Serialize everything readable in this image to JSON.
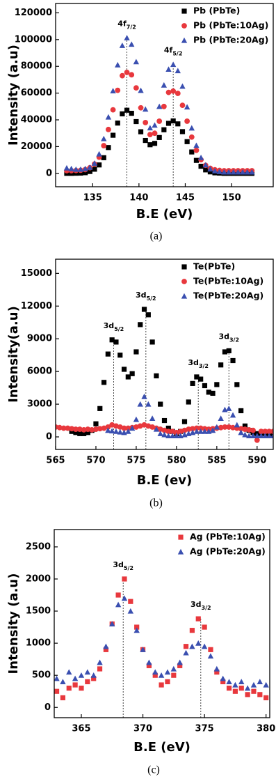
{
  "chart_data": [
    {
      "type": "scatter",
      "caption": "(a)",
      "x_label": "B.E (eV)",
      "y_label": "Intensity (a.u)",
      "xlim": [
        131,
        154.5
      ],
      "ylim": [
        -10000,
        127000
      ],
      "xticks": [
        135,
        140,
        145,
        150
      ],
      "yticks": [
        0,
        20000,
        40000,
        60000,
        80000,
        100000,
        120000
      ],
      "legend": "top-right",
      "reference_lines": [
        138.7,
        143.7
      ],
      "annotations": [
        {
          "text": "4f",
          "sub": "7/2"
        },
        {
          "text": "4f",
          "sub": "5/2"
        }
      ],
      "x": [
        132.2,
        132.7,
        133.2,
        133.7,
        134.2,
        134.7,
        135.2,
        135.7,
        136.2,
        136.7,
        137.2,
        137.7,
        138.2,
        138.7,
        139.2,
        139.7,
        140.2,
        140.7,
        141.2,
        141.7,
        142.2,
        142.7,
        143.2,
        143.7,
        144.2,
        144.7,
        145.2,
        145.7,
        146.2,
        146.7,
        147.2,
        147.7,
        148.2,
        148.7,
        149.2,
        149.7,
        150.2,
        150.7,
        151.2,
        151.7,
        152.2
      ],
      "series": [
        {
          "name": "Pb (PbTe)",
          "color": "#000000",
          "marker": "square",
          "values": [
            0,
            0,
            100,
            200,
            500,
            1400,
            3100,
            6300,
            11700,
            19300,
            28500,
            37600,
            44500,
            47200,
            44900,
            38700,
            31100,
            24600,
            21400,
            22400,
            26800,
            32600,
            37400,
            39200,
            37000,
            31200,
            23700,
            16000,
            9700,
            5300,
            2600,
            1100,
            400,
            200,
            0,
            0,
            0,
            0,
            0,
            0,
            0
          ]
        },
        {
          "name": "Pb (PbTe:10Ag)",
          "color": "#e8383d",
          "marker": "circle",
          "values": [
            2000,
            2000,
            2100,
            2300,
            2800,
            4200,
            7000,
            12100,
            20700,
            32800,
            47500,
            62100,
            73000,
            75500,
            73700,
            63900,
            49000,
            38000,
            29000,
            30000,
            39000,
            50000,
            60500,
            61500,
            59800,
            50900,
            39000,
            27100,
            17200,
            10200,
            6000,
            3800,
            2700,
            2200,
            2000,
            2000,
            2000,
            2000,
            2000,
            2000,
            2000
          ]
        },
        {
          "name": "Pb (PbTe:20Ag)",
          "color": "#3a4fb0",
          "marker": "triangle",
          "values": [
            4000,
            3500,
            3000,
            3000,
            3500,
            4500,
            7600,
            14500,
            25900,
            42100,
            61700,
            81100,
            95600,
            101300,
            96500,
            83400,
            62000,
            48000,
            34000,
            36000,
            50000,
            66000,
            77800,
            81400,
            76700,
            65100,
            49600,
            33900,
            20900,
            11800,
            6300,
            3300,
            1900,
            1300,
            1000,
            1000,
            1000,
            1000,
            1000,
            1000,
            1000
          ]
        }
      ]
    },
    {
      "type": "scatter",
      "caption": "(b)",
      "x_label": "B.E (ev)",
      "y_label": "Intensity(a.u)",
      "xlim": [
        565,
        592
      ],
      "ylim": [
        -1150,
        16300
      ],
      "xticks": [
        565,
        570,
        575,
        580,
        585,
        590
      ],
      "yticks": [
        0,
        3000,
        6000,
        9000,
        12000,
        15000
      ],
      "legend": "top-right",
      "reference_lines": [
        572.2,
        576.2,
        582.7,
        586.5
      ],
      "annotations": [
        {
          "text": "3d",
          "sub": "5/2"
        },
        {
          "text": "3d",
          "sub": "5/2"
        },
        {
          "text": "3d",
          "sub": "3/2"
        },
        {
          "text": "3d",
          "sub": "3/2"
        }
      ],
      "x": [
        565,
        565.5,
        566,
        566.5,
        567,
        567.5,
        568,
        568.5,
        569,
        569.5,
        570,
        570.5,
        571,
        571.5,
        572,
        572.5,
        573,
        573.5,
        574,
        574.5,
        575,
        575.5,
        576,
        576.5,
        577,
        577.5,
        578,
        578.5,
        579,
        579.5,
        580,
        580.5,
        581,
        581.5,
        582,
        582.5,
        583,
        583.5,
        584,
        584.5,
        585,
        585.5,
        586,
        586.5,
        587,
        587.5,
        588,
        588.5,
        589,
        589.5,
        590,
        590.5,
        591,
        591.5,
        592
      ],
      "series": [
        {
          "name": "Te(PbTe)",
          "color": "#000000",
          "marker": "square",
          "values": [
            null,
            null,
            null,
            null,
            500,
            400,
            300,
            300,
            400,
            600,
            1200,
            2600,
            5000,
            7600,
            8900,
            8700,
            7500,
            6200,
            5500,
            5800,
            7800,
            10300,
            11700,
            11200,
            8700,
            5600,
            3000,
            1500,
            800,
            500,
            300,
            500,
            1400,
            3200,
            4900,
            5500,
            5300,
            4700,
            4100,
            4000,
            4800,
            6600,
            7800,
            7900,
            7000,
            4800,
            2400,
            1000,
            600,
            400,
            300,
            300,
            300,
            200,
            200
          ]
        },
        {
          "name": "Te(PbTe:10Ag)",
          "color": "#e8383d",
          "marker": "circle",
          "values": [
            900,
            850,
            800,
            800,
            750,
            700,
            700,
            650,
            700,
            650,
            700,
            750,
            800,
            900,
            1100,
            1000,
            900,
            800,
            800,
            850,
            900,
            1000,
            1100,
            1000,
            900,
            800,
            700,
            600,
            500,
            500,
            400,
            500,
            600,
            700,
            750,
            800,
            800,
            750,
            700,
            750,
            800,
            850,
            900,
            900,
            850,
            800,
            750,
            700,
            650,
            600,
            -300,
            500,
            500,
            500,
            500
          ]
        },
        {
          "name": "Te(PbTe:20Ag)",
          "color": "#3a4fb0",
          "marker": "triangle",
          "values": [
            null,
            null,
            null,
            null,
            null,
            null,
            null,
            null,
            null,
            null,
            null,
            null,
            null,
            600,
            550,
            500,
            450,
            400,
            500,
            800,
            1600,
            3000,
            3700,
            3000,
            1700,
            700,
            300,
            200,
            100,
            100,
            100,
            100,
            200,
            300,
            400,
            500,
            500,
            500,
            500,
            600,
            900,
            1700,
            2500,
            2600,
            2000,
            1100,
            400,
            200,
            100,
            100,
            100,
            100,
            100,
            100,
            100
          ]
        }
      ]
    },
    {
      "type": "scatter",
      "caption": "(c)",
      "x_label": "B.E (eV)",
      "y_label": "Intensity (a.u)",
      "xlim": [
        362.8,
        380.3
      ],
      "ylim": [
        -160,
        2770
      ],
      "xticks": [
        365,
        370,
        375,
        380
      ],
      "yticks": [
        0,
        500,
        1000,
        1500,
        2000,
        2500
      ],
      "legend": "top-right",
      "reference_lines": [
        368.4,
        374.7
      ],
      "annotations": [
        {
          "text": "3d",
          "sub": "5/2"
        },
        {
          "text": "3d",
          "sub": "3/2"
        }
      ],
      "x": [
        363,
        363.5,
        364,
        364.5,
        365,
        365.5,
        366,
        366.5,
        367,
        367.5,
        368,
        368.5,
        369,
        369.5,
        370,
        370.5,
        371,
        371.5,
        372,
        372.5,
        373,
        373.5,
        374,
        374.5,
        375,
        375.5,
        376,
        376.5,
        377,
        377.5,
        378,
        378.5,
        379,
        379.5,
        380
      ],
      "series": [
        {
          "name": "Ag (PbTe:10Ag)",
          "color": "#e8383d",
          "marker": "square",
          "values": [
            250,
            150,
            300,
            350,
            300,
            400,
            450,
            600,
            900,
            1300,
            1750,
            2000,
            1650,
            1250,
            900,
            650,
            500,
            350,
            400,
            500,
            650,
            950,
            1200,
            1380,
            1250,
            900,
            550,
            400,
            300,
            250,
            300,
            200,
            250,
            200,
            150
          ]
        },
        {
          "name": "Ag (PbTe:20Ag)",
          "color": "#3a4fb0",
          "marker": "triangle",
          "values": [
            450,
            400,
            550,
            450,
            500,
            550,
            500,
            700,
            950,
            1300,
            1600,
            1700,
            1500,
            1200,
            900,
            700,
            550,
            500,
            550,
            600,
            700,
            850,
            950,
            1000,
            950,
            800,
            600,
            450,
            400,
            350,
            400,
            300,
            350,
            400,
            350
          ]
        }
      ]
    }
  ]
}
